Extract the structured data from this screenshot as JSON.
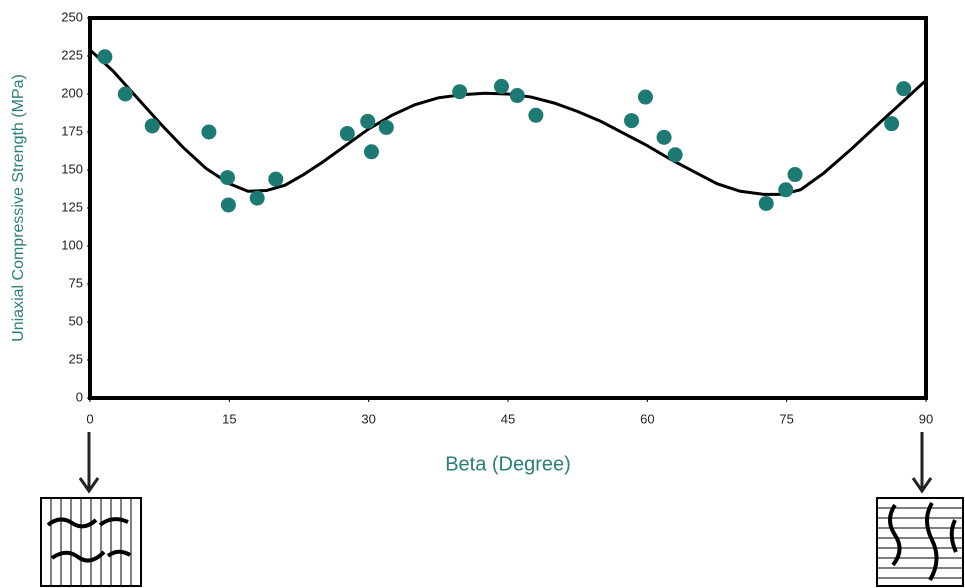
{
  "chart_data": {
    "type": "scatter",
    "x_label": "Beta  (Degree)",
    "y_label": "Uniaxial Compressive Strength (MPa)",
    "xlim": [
      0,
      90
    ],
    "xticks": [
      0,
      15,
      30,
      45,
      60,
      75,
      90
    ],
    "ylim": [
      0,
      250
    ],
    "yticks": [
      0,
      25,
      50,
      75,
      100,
      125,
      150,
      175,
      200,
      225,
      250
    ],
    "series": [
      {
        "type": "scatter",
        "color": "#1d7a72",
        "x": [
          1.6,
          3.8,
          6.7,
          12.8,
          14.8,
          14.9,
          18.0,
          20.0,
          27.7,
          29.9,
          30.3,
          31.9,
          39.8,
          44.3,
          46.0,
          48.0,
          58.3,
          59.8,
          61.8,
          63.0,
          72.8,
          74.9,
          75.9,
          86.3,
          87.6
        ],
        "values": [
          224.5,
          200,
          179,
          175,
          145,
          127,
          131.5,
          144,
          174,
          182,
          162,
          178,
          201.5,
          205,
          199,
          186,
          182.5,
          198,
          171.5,
          160,
          128,
          137,
          147,
          180.5,
          203.5
        ]
      },
      {
        "type": "line",
        "color": "#000000",
        "x": [
          0,
          2.5,
          5,
          7.5,
          10,
          12.5,
          15,
          17,
          19,
          21,
          23,
          25,
          27.5,
          30,
          32.5,
          35,
          37.5,
          40,
          42.5,
          45,
          47.5,
          50,
          52.5,
          55,
          57.5,
          60,
          62.5,
          65,
          67.5,
          70,
          72.5,
          74.5,
          76.5,
          79,
          82,
          85,
          87.5,
          90
        ],
        "values": [
          229,
          215,
          198,
          181,
          165,
          151,
          141,
          136,
          136.5,
          140,
          147,
          155,
          166,
          177,
          186,
          193,
          197.5,
          199.5,
          200.5,
          200,
          198,
          194,
          188.5,
          182,
          174,
          166,
          157,
          149,
          141,
          136,
          134,
          134,
          137,
          148,
          164,
          181,
          195,
          209
        ]
      }
    ]
  }
}
